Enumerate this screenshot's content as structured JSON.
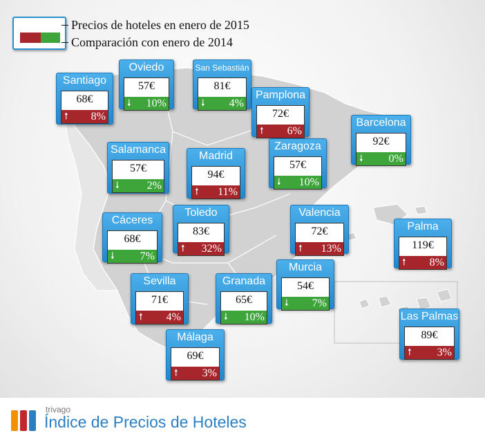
{
  "legend": {
    "line1": "Precios de hoteles en enero de 2015",
    "line2": "Comparación con enero de 2014",
    "up_color": "#a7262b",
    "down_color": "#3ea53a"
  },
  "cities": [
    {
      "name": "Santiago",
      "price": "68€",
      "dir": "up",
      "pct": "8%"
    },
    {
      "name": "Oviedo",
      "price": "57€",
      "dir": "down",
      "pct": "10%"
    },
    {
      "name": "San Sebastián",
      "price": "81€",
      "dir": "down",
      "pct": "4%"
    },
    {
      "name": "Pamplona",
      "price": "72€",
      "dir": "up",
      "pct": "6%"
    },
    {
      "name": "Barcelona",
      "price": "92€",
      "dir": "down",
      "pct": "0%"
    },
    {
      "name": "Salamanca",
      "price": "57€",
      "dir": "down",
      "pct": "2%"
    },
    {
      "name": "Madrid",
      "price": "94€",
      "dir": "up",
      "pct": "11%"
    },
    {
      "name": "Zaragoza",
      "price": "57€",
      "dir": "down",
      "pct": "10%"
    },
    {
      "name": "Cáceres",
      "price": "68€",
      "dir": "down",
      "pct": "7%"
    },
    {
      "name": "Toledo",
      "price": "83€",
      "dir": "up",
      "pct": "32%"
    },
    {
      "name": "Valencia",
      "price": "72€",
      "dir": "up",
      "pct": "13%"
    },
    {
      "name": "Palma",
      "price": "119€",
      "dir": "up",
      "pct": "8%"
    },
    {
      "name": "Sevilla",
      "price": "71€",
      "dir": "up",
      "pct": "4%"
    },
    {
      "name": "Granada",
      "price": "65€",
      "dir": "down",
      "pct": "10%"
    },
    {
      "name": "Murcia",
      "price": "54€",
      "dir": "down",
      "pct": "7%"
    },
    {
      "name": "Las Palmas",
      "price": "89€",
      "dir": "up",
      "pct": "3%"
    },
    {
      "name": "Málaga",
      "price": "69€",
      "dir": "up",
      "pct": "3%"
    }
  ],
  "footer": {
    "brand": "trivago",
    "title": "Índice de Precios de Hoteles",
    "logo_colors": [
      "#f29100",
      "#c0282d",
      "#2a7fc3"
    ]
  }
}
